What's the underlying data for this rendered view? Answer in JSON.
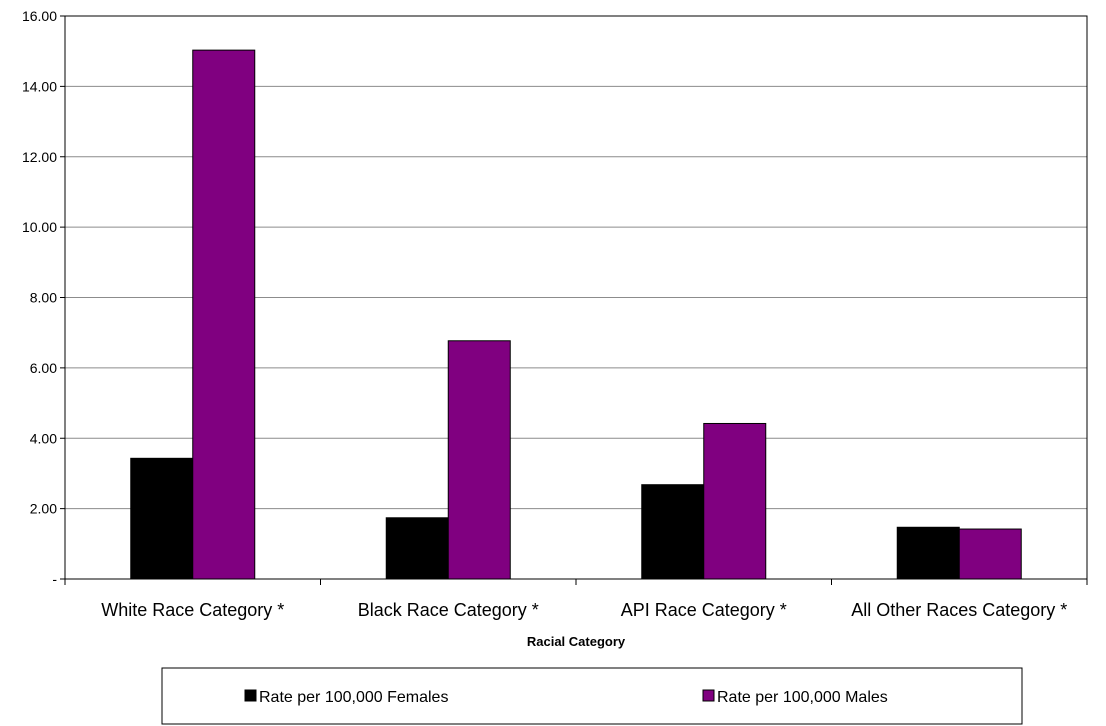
{
  "chart_data": {
    "type": "bar",
    "title": "",
    "xlabel": "Racial Category",
    "ylabel": "",
    "categories": [
      "White Race Category *",
      "Black Race Category *",
      "API Race Category *",
      "All Other Races Category *"
    ],
    "series": [
      {
        "name": "Rate per 100,000 Females",
        "color": "#000000",
        "values": [
          3.43,
          1.74,
          2.68,
          1.47
        ]
      },
      {
        "name": "Rate per 100,000 Males",
        "color": "#800080",
        "values": [
          15.03,
          6.77,
          4.42,
          1.42
        ]
      }
    ],
    "ylim": [
      0,
      16
    ],
    "yticks": [
      {
        "value": 0,
        "label": "-"
      },
      {
        "value": 2,
        "label": "2.00"
      },
      {
        "value": 4,
        "label": "4.00"
      },
      {
        "value": 6,
        "label": "6.00"
      },
      {
        "value": 8,
        "label": "8.00"
      },
      {
        "value": 10,
        "label": "10.00"
      },
      {
        "value": 12,
        "label": "12.00"
      },
      {
        "value": 14,
        "label": "14.00"
      },
      {
        "value": 16,
        "label": "16.00"
      }
    ],
    "grid": true,
    "legend_position": "bottom"
  }
}
